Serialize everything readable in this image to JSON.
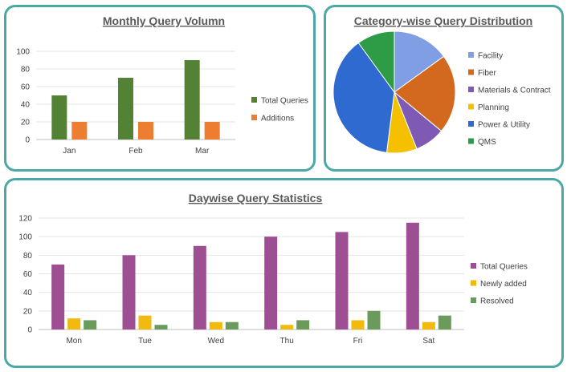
{
  "chart_data": [
    {
      "type": "bar",
      "title": "Monthly Query Volumn",
      "categories": [
        "Jan",
        "Feb",
        "Mar"
      ],
      "series": [
        {
          "name": "Total Queries",
          "values": [
            50,
            70,
            90
          ],
          "color": "#548235"
        },
        {
          "name": "Additions",
          "values": [
            20,
            20,
            20
          ],
          "color": "#ed7d31"
        }
      ],
      "yticks": [
        "0",
        "20",
        "40",
        "60",
        "80",
        "100"
      ],
      "ylim": [
        0,
        100
      ],
      "grid": true,
      "legend": "right"
    },
    {
      "type": "pie",
      "title": "Category-wise Query Distribution",
      "slices": [
        {
          "label": "Facility",
          "value": 15,
          "color": "#7f9ee3"
        },
        {
          "label": "Fiber",
          "value": 21,
          "color": "#d2691e"
        },
        {
          "label": "Materials & Contract",
          "value": 8,
          "color": "#7e5ab5"
        },
        {
          "label": "Planning",
          "value": 8,
          "color": "#f5c000"
        },
        {
          "label": "Power & Utility",
          "value": 38,
          "color": "#2e6ad0"
        },
        {
          "label": "QMS",
          "value": 10,
          "color": "#2e9c46"
        }
      ],
      "legend": "right"
    },
    {
      "type": "bar",
      "title": "Daywise Query Statistics",
      "categories": [
        "Mon",
        "Tue",
        "Wed",
        "Thu",
        "Fri",
        "Sat"
      ],
      "series": [
        {
          "name": "Total Queries",
          "values": [
            70,
            80,
            90,
            100,
            105,
            115
          ],
          "color": "#9e4f93"
        },
        {
          "name": "Newly added",
          "values": [
            12,
            15,
            8,
            5,
            10,
            8
          ],
          "color": "#f2b90f"
        },
        {
          "name": "Resolved",
          "values": [
            10,
            5,
            8,
            10,
            20,
            15
          ],
          "color": "#6a9b5c"
        }
      ],
      "yticks": [
        "0",
        "20",
        "40",
        "60",
        "80",
        "100",
        "120"
      ],
      "ylim": [
        0,
        120
      ],
      "grid": true,
      "legend": "right"
    }
  ]
}
